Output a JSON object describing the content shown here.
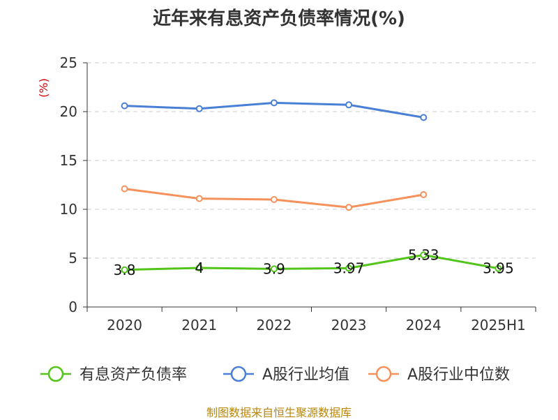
{
  "title": "近年来有息资产负债率情况(%)",
  "source": "制图数据来自恒生聚源数据库",
  "chart_data": {
    "type": "line",
    "categories": [
      "2020",
      "2021",
      "2022",
      "2023",
      "2024",
      "2025H1"
    ],
    "y_unit": "(%)",
    "ylim": [
      0,
      25
    ],
    "yticks": [
      0,
      5,
      10,
      15,
      20,
      25
    ],
    "grid": true,
    "legend_position": "bottom",
    "series": [
      {
        "name": "有息资产负债率",
        "color": "#52c41a",
        "values": [
          3.8,
          4,
          3.9,
          3.97,
          5.33,
          3.95
        ],
        "labels": [
          "3.8",
          "4",
          "3.9",
          "3.97",
          "5.33",
          "3.95"
        ]
      },
      {
        "name": "A股行业均值",
        "color": "#4a7fd6",
        "values": [
          20.6,
          20.3,
          20.9,
          20.7,
          19.4,
          null
        ]
      },
      {
        "name": "A股行业中位数",
        "color": "#f5915b",
        "values": [
          12.1,
          11.1,
          11.0,
          10.2,
          11.5,
          null
        ]
      }
    ]
  }
}
